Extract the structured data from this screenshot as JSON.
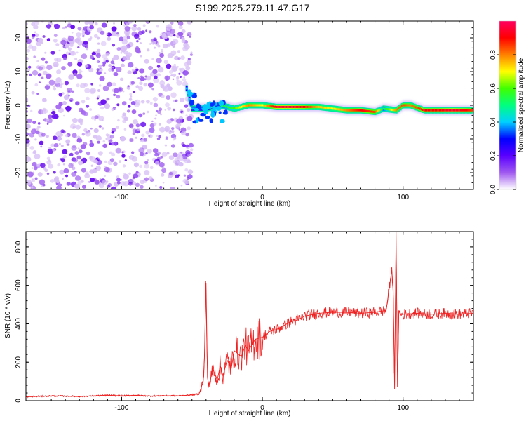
{
  "title": "S199.2025.279.11.47.G17",
  "chart_data": [
    {
      "type": "heatmap",
      "title": "S199.2025.279.11.47.G17",
      "xlabel": "Height of straight line (km)",
      "ylabel": "Frequency (Hz)",
      "xlim": [
        -168,
        150
      ],
      "ylim": [
        -25,
        25
      ],
      "xticks": [
        -100,
        0,
        100
      ],
      "yticks": [
        -20,
        -10,
        0,
        10,
        20
      ],
      "colorbar": {
        "label": "Normalized spectral amplitude",
        "range": [
          0,
          1
        ],
        "ticks": [
          0.0,
          0.2,
          0.4,
          0.6,
          0.8
        ],
        "tick_labels": [
          "0.0",
          "0.2",
          "0.4",
          "0.6",
          "0.8"
        ],
        "colormap": [
          "#ffffff",
          "#a05af0",
          "#5a00ff",
          "#0000ff",
          "#00d0ff",
          "#00ff80",
          "#40ff00",
          "#ffff00",
          "#ff8000",
          "#ff0000",
          "#ff0060"
        ]
      },
      "noise_region": {
        "x_from": -168,
        "x_to": -54,
        "amplitude": 0.15
      },
      "ridge": [
        {
          "x": -54,
          "f": 5,
          "amplitude": 0.4
        },
        {
          "x": -50,
          "f": -1,
          "amplitude": 0.4
        },
        {
          "x": -45,
          "f": -1,
          "amplitude": 0.35
        },
        {
          "x": -40,
          "f": -1,
          "amplitude": 0.4
        },
        {
          "x": -30,
          "f": 0,
          "amplitude": 0.5
        },
        {
          "x": -20,
          "f": -1,
          "amplitude": 0.6
        },
        {
          "x": -10,
          "f": 0,
          "amplitude": 0.8
        },
        {
          "x": 0,
          "f": 0,
          "amplitude": 0.7
        },
        {
          "x": 10,
          "f": -0.5,
          "amplitude": 0.95
        },
        {
          "x": 20,
          "f": -0.5,
          "amplitude": 0.95
        },
        {
          "x": 30,
          "f": -0.5,
          "amplitude": 0.9
        },
        {
          "x": 40,
          "f": -0.5,
          "amplitude": 0.75
        },
        {
          "x": 50,
          "f": -1,
          "amplitude": 0.7
        },
        {
          "x": 60,
          "f": -1.5,
          "amplitude": 0.8
        },
        {
          "x": 70,
          "f": -1.5,
          "amplitude": 0.9
        },
        {
          "x": 80,
          "f": -2,
          "amplitude": 0.85
        },
        {
          "x": 86,
          "f": -1,
          "amplitude": 0.5
        },
        {
          "x": 95,
          "f": -1.5,
          "amplitude": 0.8
        },
        {
          "x": 100,
          "f": 0,
          "amplitude": 0.85
        },
        {
          "x": 105,
          "f": 0,
          "amplitude": 0.8
        },
        {
          "x": 115,
          "f": -1.5,
          "amplitude": 0.9
        },
        {
          "x": 125,
          "f": -1.5,
          "amplitude": 0.9
        },
        {
          "x": 135,
          "f": -1.5,
          "amplitude": 0.95
        },
        {
          "x": 145,
          "f": -1.5,
          "amplitude": 0.9
        },
        {
          "x": 150,
          "f": -1.5,
          "amplitude": 0.85
        }
      ]
    },
    {
      "type": "line",
      "xlabel": "Height of straight line (km)",
      "ylabel": "SNR (10 * v/v)",
      "xlim": [
        -168,
        150
      ],
      "ylim": [
        0,
        880
      ],
      "xticks": [
        -100,
        0,
        100
      ],
      "yticks": [
        0,
        200,
        400,
        600,
        800
      ],
      "color": "#ee2222",
      "series": [
        {
          "name": "SNR",
          "x": [
            -168,
            -150,
            -130,
            -110,
            -100,
            -90,
            -80,
            -70,
            -60,
            -50,
            -45,
            -42,
            -41,
            -40,
            -39,
            -38,
            -35,
            -32,
            -30,
            -28,
            -25,
            -22,
            -20,
            -15,
            -12,
            -10,
            -5,
            0,
            5,
            10,
            15,
            20,
            25,
            30,
            40,
            50,
            60,
            70,
            80,
            88,
            92,
            93,
            94,
            95,
            96,
            97,
            98,
            100,
            110,
            120,
            130,
            140,
            150
          ],
          "y": [
            20,
            25,
            22,
            28,
            25,
            28,
            24,
            26,
            25,
            30,
            35,
            100,
            250,
            610,
            120,
            80,
            160,
            110,
            180,
            130,
            210,
            170,
            260,
            230,
            290,
            260,
            320,
            330,
            360,
            370,
            390,
            410,
            420,
            440,
            455,
            460,
            460,
            455,
            460,
            470,
            680,
            580,
            60,
            880,
            70,
            470,
            450,
            450,
            455,
            450,
            455,
            450,
            455
          ]
        }
      ]
    }
  ]
}
